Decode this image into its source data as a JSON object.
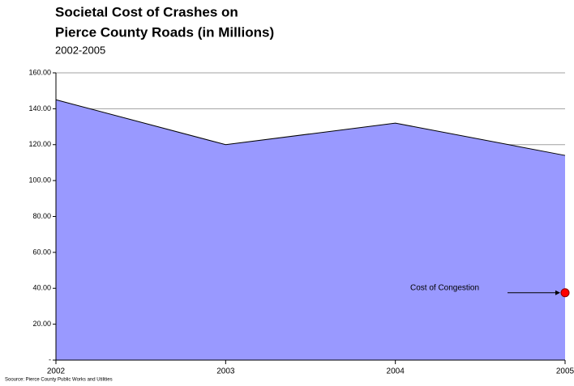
{
  "chart_data": {
    "type": "area",
    "title": [
      "Societal Cost of Crashes on",
      "Pierce County Roads (in Millions)"
    ],
    "subtitle": "2002-2005",
    "x": [
      2002,
      2003,
      2004,
      2005
    ],
    "values": [
      145,
      120,
      132,
      114
    ],
    "color": "#9999ff",
    "xlim": [
      2002,
      2005
    ],
    "xticks": [
      2002,
      2003,
      2004,
      2005
    ],
    "ylim": [
      0,
      160
    ],
    "yticks": [
      {
        "value": 0,
        "label": "-"
      },
      {
        "value": 20,
        "label": "20.00"
      },
      {
        "value": 40,
        "label": "40.00"
      },
      {
        "value": 60,
        "label": "60.00"
      },
      {
        "value": 80,
        "label": "80.00"
      },
      {
        "value": 100,
        "label": "100.00"
      },
      {
        "value": 120,
        "label": "120.00"
      },
      {
        "value": 140,
        "label": "140.00"
      },
      {
        "value": 160,
        "label": "160.00"
      }
    ],
    "grid": true,
    "annotation": {
      "text": "Cost of Congestion",
      "x": 2005,
      "y": 37.5,
      "color": "#ff0000"
    },
    "source": "Soource: Pierce County Public Works and Utilities"
  }
}
